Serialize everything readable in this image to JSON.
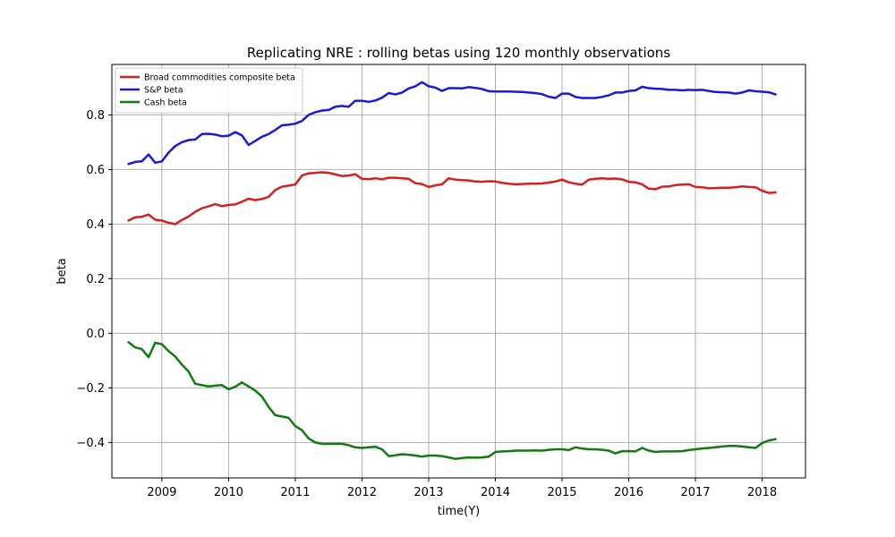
{
  "chart_data": {
    "type": "line",
    "title": "Replicating NRE : rolling betas using 120 monthly observations",
    "xlabel": "time(Y)",
    "ylabel": "beta",
    "xlim": [
      2008.25,
      2018.65
    ],
    "ylim": [
      -0.53,
      0.985
    ],
    "xticks": [
      2009,
      2010,
      2011,
      2012,
      2013,
      2014,
      2015,
      2016,
      2017,
      2018
    ],
    "xtick_labels": [
      "2009",
      "2010",
      "2011",
      "2012",
      "2013",
      "2014",
      "2015",
      "2016",
      "2017",
      "2018"
    ],
    "yticks": [
      -0.4,
      -0.2,
      0.0,
      0.2,
      0.4,
      0.6,
      0.8
    ],
    "ytick_labels": [
      "−0.4",
      "−0.2",
      "0.0",
      "0.2",
      "0.4",
      "0.6",
      "0.8"
    ],
    "grid": true,
    "legend_position": "upper-left",
    "series": [
      {
        "name": "Broad commodities composite beta",
        "color": "#d62020",
        "x": [
          2008.5,
          2008.6,
          2008.7,
          2008.8,
          2008.9,
          2009.0,
          2009.1,
          2009.2,
          2009.3,
          2009.4,
          2009.5,
          2009.6,
          2009.7,
          2009.8,
          2009.9,
          2010.0,
          2010.1,
          2010.2,
          2010.3,
          2010.4,
          2010.5,
          2010.6,
          2010.7,
          2010.8,
          2010.9,
          2011.0,
          2011.1,
          2011.2,
          2011.3,
          2011.4,
          2011.5,
          2011.6,
          2011.7,
          2011.8,
          2011.9,
          2012.0,
          2012.1,
          2012.2,
          2012.3,
          2012.4,
          2012.5,
          2012.6,
          2012.7,
          2012.8,
          2012.9,
          2013.0,
          2013.1,
          2013.2,
          2013.3,
          2013.4,
          2013.5,
          2013.6,
          2013.7,
          2013.8,
          2013.9,
          2014.0,
          2014.1,
          2014.2,
          2014.3,
          2014.4,
          2014.5,
          2014.6,
          2014.7,
          2014.8,
          2014.9,
          2015.0,
          2015.1,
          2015.2,
          2015.3,
          2015.4,
          2015.5,
          2015.6,
          2015.7,
          2015.8,
          2015.9,
          2016.0,
          2016.1,
          2016.2,
          2016.3,
          2016.4,
          2016.5,
          2016.6,
          2016.7,
          2016.8,
          2016.9,
          2017.0,
          2017.1,
          2017.2,
          2017.3,
          2017.4,
          2017.5,
          2017.6,
          2017.7,
          2017.8,
          2017.9,
          2018.0,
          2018.1,
          2018.2
        ],
        "y": [
          0.413,
          0.425,
          0.427,
          0.435,
          0.416,
          0.413,
          0.405,
          0.4,
          0.415,
          0.428,
          0.445,
          0.458,
          0.465,
          0.473,
          0.466,
          0.47,
          0.472,
          0.482,
          0.493,
          0.488,
          0.492,
          0.5,
          0.525,
          0.537,
          0.541,
          0.545,
          0.578,
          0.586,
          0.588,
          0.59,
          0.588,
          0.582,
          0.576,
          0.578,
          0.583,
          0.566,
          0.565,
          0.568,
          0.564,
          0.57,
          0.57,
          0.568,
          0.566,
          0.55,
          0.547,
          0.536,
          0.542,
          0.546,
          0.568,
          0.563,
          0.561,
          0.56,
          0.556,
          0.555,
          0.557,
          0.556,
          0.551,
          0.548,
          0.546,
          0.547,
          0.548,
          0.548,
          0.549,
          0.552,
          0.556,
          0.563,
          0.553,
          0.548,
          0.545,
          0.563,
          0.566,
          0.568,
          0.566,
          0.567,
          0.564,
          0.555,
          0.553,
          0.546,
          0.53,
          0.528,
          0.537,
          0.538,
          0.543,
          0.545,
          0.546,
          0.536,
          0.535,
          0.531,
          0.532,
          0.533,
          0.533,
          0.535,
          0.538,
          0.536,
          0.535,
          0.522,
          0.514,
          0.516
        ]
      },
      {
        "name": "S&P beta",
        "color": "#1a1ad6",
        "x": [
          2008.5,
          2008.6,
          2008.7,
          2008.8,
          2008.9,
          2009.0,
          2009.1,
          2009.2,
          2009.3,
          2009.4,
          2009.5,
          2009.6,
          2009.7,
          2009.8,
          2009.9,
          2010.0,
          2010.1,
          2010.2,
          2010.3,
          2010.4,
          2010.5,
          2010.6,
          2010.7,
          2010.8,
          2010.9,
          2011.0,
          2011.1,
          2011.2,
          2011.3,
          2011.4,
          2011.5,
          2011.6,
          2011.7,
          2011.8,
          2011.9,
          2012.0,
          2012.1,
          2012.2,
          2012.3,
          2012.4,
          2012.5,
          2012.6,
          2012.7,
          2012.8,
          2012.9,
          2013.0,
          2013.1,
          2013.2,
          2013.3,
          2013.4,
          2013.5,
          2013.6,
          2013.7,
          2013.8,
          2013.9,
          2014.0,
          2014.1,
          2014.2,
          2014.3,
          2014.4,
          2014.5,
          2014.6,
          2014.7,
          2014.8,
          2014.9,
          2015.0,
          2015.1,
          2015.2,
          2015.3,
          2015.4,
          2015.5,
          2015.6,
          2015.7,
          2015.8,
          2015.9,
          2016.0,
          2016.1,
          2016.2,
          2016.3,
          2016.4,
          2016.5,
          2016.6,
          2016.7,
          2016.8,
          2016.9,
          2017.0,
          2017.1,
          2017.2,
          2017.3,
          2017.4,
          2017.5,
          2017.6,
          2017.7,
          2017.8,
          2017.9,
          2018.0,
          2018.1,
          2018.2
        ],
        "y": [
          0.62,
          0.628,
          0.63,
          0.655,
          0.625,
          0.63,
          0.662,
          0.686,
          0.7,
          0.708,
          0.71,
          0.73,
          0.731,
          0.728,
          0.722,
          0.724,
          0.737,
          0.725,
          0.69,
          0.705,
          0.72,
          0.73,
          0.745,
          0.762,
          0.764,
          0.768,
          0.778,
          0.8,
          0.81,
          0.816,
          0.818,
          0.83,
          0.833,
          0.83,
          0.852,
          0.852,
          0.848,
          0.853,
          0.863,
          0.88,
          0.875,
          0.882,
          0.897,
          0.905,
          0.92,
          0.905,
          0.9,
          0.888,
          0.898,
          0.898,
          0.897,
          0.902,
          0.899,
          0.895,
          0.887,
          0.886,
          0.886,
          0.886,
          0.885,
          0.884,
          0.882,
          0.88,
          0.876,
          0.867,
          0.862,
          0.878,
          0.878,
          0.866,
          0.862,
          0.862,
          0.862,
          0.866,
          0.872,
          0.882,
          0.882,
          0.888,
          0.89,
          0.903,
          0.898,
          0.896,
          0.895,
          0.892,
          0.892,
          0.89,
          0.892,
          0.891,
          0.892,
          0.888,
          0.884,
          0.883,
          0.882,
          0.878,
          0.882,
          0.89,
          0.887,
          0.885,
          0.883,
          0.875
        ]
      },
      {
        "name": "Cash beta",
        "color": "#127a12",
        "x": [
          2008.5,
          2008.6,
          2008.7,
          2008.8,
          2008.9,
          2009.0,
          2009.1,
          2009.2,
          2009.3,
          2009.4,
          2009.5,
          2009.6,
          2009.7,
          2009.8,
          2009.9,
          2010.0,
          2010.1,
          2010.2,
          2010.3,
          2010.4,
          2010.5,
          2010.6,
          2010.7,
          2010.8,
          2010.9,
          2011.0,
          2011.1,
          2011.2,
          2011.3,
          2011.4,
          2011.5,
          2011.6,
          2011.7,
          2011.8,
          2011.9,
          2012.0,
          2012.1,
          2012.2,
          2012.3,
          2012.4,
          2012.5,
          2012.6,
          2012.7,
          2012.8,
          2012.9,
          2013.0,
          2013.1,
          2013.2,
          2013.3,
          2013.4,
          2013.5,
          2013.6,
          2013.7,
          2013.8,
          2013.9,
          2014.0,
          2014.1,
          2014.2,
          2014.3,
          2014.4,
          2014.5,
          2014.6,
          2014.7,
          2014.8,
          2014.9,
          2015.0,
          2015.1,
          2015.2,
          2015.3,
          2015.4,
          2015.5,
          2015.6,
          2015.7,
          2015.8,
          2015.9,
          2016.0,
          2016.1,
          2016.2,
          2016.3,
          2016.4,
          2016.5,
          2016.6,
          2016.7,
          2016.8,
          2016.9,
          2017.0,
          2017.1,
          2017.2,
          2017.3,
          2017.4,
          2017.5,
          2017.6,
          2017.7,
          2017.8,
          2017.9,
          2018.0,
          2018.1,
          2018.2
        ],
        "y": [
          -0.033,
          -0.052,
          -0.058,
          -0.088,
          -0.035,
          -0.04,
          -0.065,
          -0.085,
          -0.115,
          -0.14,
          -0.185,
          -0.19,
          -0.195,
          -0.192,
          -0.19,
          -0.205,
          -0.196,
          -0.18,
          -0.195,
          -0.21,
          -0.232,
          -0.27,
          -0.3,
          -0.305,
          -0.31,
          -0.34,
          -0.355,
          -0.385,
          -0.4,
          -0.405,
          -0.405,
          -0.405,
          -0.405,
          -0.41,
          -0.418,
          -0.42,
          -0.418,
          -0.416,
          -0.425,
          -0.45,
          -0.447,
          -0.443,
          -0.445,
          -0.448,
          -0.452,
          -0.448,
          -0.448,
          -0.45,
          -0.455,
          -0.46,
          -0.457,
          -0.455,
          -0.456,
          -0.455,
          -0.452,
          -0.435,
          -0.433,
          -0.432,
          -0.43,
          -0.43,
          -0.43,
          -0.429,
          -0.43,
          -0.427,
          -0.425,
          -0.425,
          -0.428,
          -0.418,
          -0.422,
          -0.425,
          -0.425,
          -0.427,
          -0.43,
          -0.44,
          -0.432,
          -0.432,
          -0.433,
          -0.42,
          -0.43,
          -0.435,
          -0.433,
          -0.433,
          -0.433,
          -0.432,
          -0.428,
          -0.425,
          -0.422,
          -0.42,
          -0.418,
          -0.415,
          -0.413,
          -0.413,
          -0.415,
          -0.418,
          -0.42,
          -0.402,
          -0.393,
          -0.388
        ]
      }
    ]
  }
}
